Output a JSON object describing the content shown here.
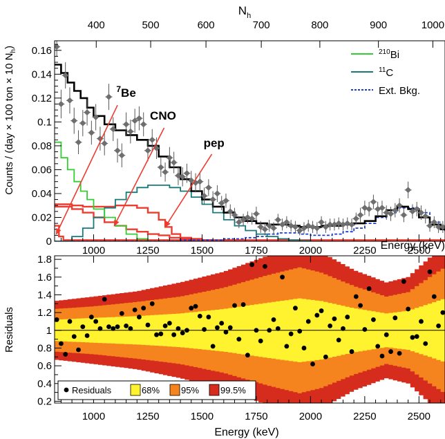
{
  "chart_data": [
    {
      "type": "line",
      "panel": "spectrum",
      "xlabel": "Energy (keV)",
      "ylabel": "Counts / (day × 100 ton × 10 N",
      "ylabel_sub": "h",
      "ylabel_close": ")",
      "top_axis_label": "N",
      "top_axis_label_sub": "h",
      "xlim": [
        820,
        2620
      ],
      "ylim": [
        0,
        0.168
      ],
      "x_ticks": [
        1000,
        1250,
        1500,
        1750,
        2000,
        2250,
        2500
      ],
      "x_tick_labels": [
        "1000",
        "1250",
        "1500",
        "1750",
        "2000",
        "2250",
        "2500"
      ],
      "y_ticks": [
        0,
        0.02,
        0.04,
        0.06,
        0.08,
        0.1,
        0.12,
        0.14,
        0.16
      ],
      "y_tick_labels": [
        "0",
        "0.02",
        "0.04",
        "0.06",
        "0.08",
        "0.1",
        "0.12",
        "0.14",
        "0.16"
      ],
      "top_ticks_energy": [
        1012,
        1263,
        1518,
        1773,
        2043,
        2313,
        2564
      ],
      "top_tick_labels": [
        "400",
        "500",
        "600",
        "700",
        "800",
        "900",
        "1000"
      ],
      "legend": {
        "placement": "top-right",
        "entries": [
          {
            "sup": "210",
            "label": "Bi",
            "color": "#33cc33",
            "style": "solid"
          },
          {
            "sup": "11",
            "label": "C",
            "color": "#177a7a",
            "style": "solid"
          },
          {
            "sup": "",
            "label": "Ext. Bkg.",
            "color": "#1a3ccc",
            "style": "dotted"
          }
        ]
      },
      "annotations": [
        {
          "sup": "7",
          "label": "Be",
          "color": "#ee3b30",
          "text_at": [
            1150,
            0.121
          ],
          "arrow_from": [
            1110,
            0.114
          ],
          "arrow_to": [
            828,
            0.006
          ]
        },
        {
          "sup": "",
          "label": "CNO",
          "color": "#ee3b30",
          "text_at": [
            1320,
            0.102
          ],
          "arrow_from": [
            1325,
            0.095
          ],
          "arrow_to": [
            1095,
            0.013
          ]
        },
        {
          "sup": "",
          "label": "pep",
          "color": "#ee3b30",
          "text_at": [
            1555,
            0.079
          ],
          "arrow_from": [
            1545,
            0.073
          ],
          "arrow_to": [
            1330,
            0.012
          ]
        }
      ],
      "series": [
        {
          "name": "Total fit",
          "color": "#000000",
          "x": [
            820,
            850,
            880,
            910,
            940,
            970,
            1000,
            1050,
            1100,
            1150,
            1200,
            1250,
            1300,
            1350,
            1400,
            1450,
            1500,
            1550,
            1600,
            1650,
            1700,
            1750,
            1800,
            1850,
            1900,
            1950,
            2000,
            2050,
            2100,
            2150,
            2200,
            2250,
            2300,
            2350,
            2400,
            2450,
            2500,
            2550,
            2600,
            2620
          ],
          "y": [
            0.148,
            0.141,
            0.133,
            0.126,
            0.12,
            0.112,
            0.105,
            0.098,
            0.093,
            0.089,
            0.085,
            0.08,
            0.071,
            0.062,
            0.052,
            0.042,
            0.035,
            0.029,
            0.024,
            0.02,
            0.017,
            0.015,
            0.014,
            0.014,
            0.013,
            0.012,
            0.012,
            0.013,
            0.013,
            0.014,
            0.015,
            0.017,
            0.021,
            0.026,
            0.029,
            0.027,
            0.02,
            0.014,
            0.01,
            0.009
          ]
        },
        {
          "name": "210Bi",
          "color": "#33cc33",
          "x": [
            820,
            850,
            880,
            910,
            940,
            970,
            1000,
            1050,
            1100,
            1150,
            1200,
            1250
          ],
          "y": [
            0.083,
            0.07,
            0.06,
            0.05,
            0.042,
            0.035,
            0.027,
            0.02,
            0.013,
            0.006,
            0.002,
            0.0
          ]
        },
        {
          "name": "11C",
          "color": "#177a7a",
          "x": [
            820,
            900,
            950,
            1000,
            1050,
            1100,
            1150,
            1200,
            1250,
            1300,
            1350,
            1400,
            1450,
            1500,
            1550,
            1600,
            1650,
            1700,
            1750,
            1800,
            1850,
            1900,
            1950,
            2000
          ],
          "y": [
            0.0,
            0.004,
            0.011,
            0.02,
            0.028,
            0.035,
            0.041,
            0.045,
            0.047,
            0.047,
            0.045,
            0.042,
            0.037,
            0.031,
            0.024,
            0.018,
            0.013,
            0.009,
            0.006,
            0.004,
            0.002,
            0.001,
            0.0005,
            0.0
          ]
        },
        {
          "name": "Ext. Bkg.",
          "color": "#1a3ccc",
          "dashed": true,
          "x": [
            820,
            1000,
            1200,
            1400,
            1500,
            1600,
            1700,
            1750,
            1800,
            1850,
            1900,
            1950,
            2000,
            2050,
            2100,
            2150,
            2200,
            2250,
            2300,
            2350,
            2400,
            2450,
            2500,
            2550,
            2600,
            2620
          ],
          "y": [
            0.0,
            0.0,
            0.0,
            0.001,
            0.001,
            0.002,
            0.003,
            0.004,
            0.006,
            0.007,
            0.007,
            0.006,
            0.005,
            0.005,
            0.006,
            0.008,
            0.011,
            0.015,
            0.02,
            0.024,
            0.028,
            0.028,
            0.024,
            0.016,
            0.01,
            0.008
          ]
        },
        {
          "name": "7Be",
          "color": "#ee3b30",
          "x": [
            820,
            840,
            860,
            2620
          ],
          "y": [
            0.013,
            0.004,
            0.001,
            0.001
          ]
        },
        {
          "name": "CNO",
          "color": "#ee3b30",
          "x": [
            820,
            900,
            950,
            1000,
            1050,
            1100,
            1150,
            1200,
            1250,
            1300,
            1350,
            1400,
            1450,
            1500,
            1550,
            1600,
            1650,
            1700
          ],
          "y": [
            0.029,
            0.027,
            0.024,
            0.02,
            0.016,
            0.013,
            0.01,
            0.008,
            0.006,
            0.005,
            0.003,
            0.002,
            0.001,
            0.0008,
            0.0005,
            0.0003,
            0.0002,
            0.0
          ]
        },
        {
          "name": "pep",
          "color": "#ee3b30",
          "x": [
            820,
            850,
            900,
            950,
            1000,
            1050,
            1100,
            1150,
            1200,
            1250,
            1300,
            1330,
            1360,
            1400,
            1450,
            1500,
            1550
          ],
          "y": [
            0.031,
            0.031,
            0.03,
            0.029,
            0.029,
            0.029,
            0.03,
            0.03,
            0.028,
            0.024,
            0.018,
            0.012,
            0.006,
            0.003,
            0.002,
            0.001,
            0.0
          ]
        }
      ],
      "data_points": {
        "x": [
          830,
          850,
          870,
          890,
          910,
          930,
          950,
          970,
          990,
          1010,
          1030,
          1050,
          1070,
          1090,
          1110,
          1130,
          1150,
          1170,
          1190,
          1210,
          1230,
          1250,
          1270,
          1290,
          1310,
          1330,
          1350,
          1370,
          1390,
          1410,
          1430,
          1450,
          1470,
          1490,
          1510,
          1530,
          1550,
          1570,
          1590,
          1610,
          1630,
          1650,
          1670,
          1690,
          1710,
          1730,
          1750,
          1770,
          1790,
          1810,
          1830,
          1850,
          1870,
          1890,
          1910,
          1930,
          1950,
          1970,
          1990,
          2010,
          2030,
          2050,
          2070,
          2090,
          2110,
          2130,
          2150,
          2170,
          2190,
          2210,
          2230,
          2250,
          2270,
          2290,
          2310,
          2330,
          2350,
          2370,
          2390,
          2410,
          2430,
          2450,
          2470,
          2490,
          2510,
          2530,
          2550,
          2570,
          2590,
          2610
        ],
        "y": [
          0.163,
          0.115,
          0.139,
          0.118,
          0.101,
          0.083,
          0.099,
          0.108,
          0.091,
          0.104,
          0.086,
          0.082,
          0.121,
          0.094,
          0.076,
          0.072,
          0.098,
          0.092,
          0.101,
          0.103,
          0.098,
          0.076,
          0.085,
          0.078,
          0.062,
          0.058,
          0.07,
          0.066,
          0.055,
          0.054,
          0.057,
          0.051,
          0.049,
          0.05,
          0.038,
          0.045,
          0.035,
          0.04,
          0.032,
          0.034,
          0.025,
          0.022,
          0.016,
          0.018,
          0.02,
          0.019,
          0.023,
          0.012,
          0.01,
          0.013,
          0.011,
          0.018,
          0.014,
          0.016,
          0.013,
          0.012,
          0.009,
          0.011,
          0.013,
          0.012,
          0.011,
          0.016,
          0.012,
          0.014,
          0.014,
          0.015,
          0.014,
          0.015,
          0.014,
          0.019,
          0.022,
          0.028,
          0.027,
          0.033,
          0.027,
          0.028,
          0.024,
          0.023,
          0.026,
          0.03,
          0.022,
          0.043,
          0.025,
          0.027,
          0.024,
          0.021,
          0.013,
          0.016,
          0.012,
          0.012
        ],
        "err": [
          0.008,
          0.012,
          0.011,
          0.011,
          0.011,
          0.01,
          0.011,
          0.011,
          0.01,
          0.011,
          0.01,
          0.01,
          0.011,
          0.01,
          0.01,
          0.01,
          0.01,
          0.01,
          0.01,
          0.01,
          0.01,
          0.009,
          0.009,
          0.009,
          0.008,
          0.008,
          0.009,
          0.009,
          0.008,
          0.008,
          0.008,
          0.008,
          0.008,
          0.008,
          0.007,
          0.007,
          0.007,
          0.007,
          0.006,
          0.006,
          0.006,
          0.006,
          0.005,
          0.005,
          0.005,
          0.005,
          0.006,
          0.005,
          0.005,
          0.005,
          0.005,
          0.005,
          0.005,
          0.005,
          0.005,
          0.005,
          0.004,
          0.005,
          0.005,
          0.005,
          0.005,
          0.005,
          0.005,
          0.005,
          0.005,
          0.005,
          0.005,
          0.005,
          0.005,
          0.005,
          0.006,
          0.006,
          0.006,
          0.006,
          0.006,
          0.006,
          0.006,
          0.006,
          0.006,
          0.006,
          0.006,
          0.007,
          0.006,
          0.006,
          0.006,
          0.006,
          0.005,
          0.005,
          0.005,
          0.005
        ]
      }
    },
    {
      "type": "scatter",
      "panel": "residuals",
      "xlabel": "Energy (keV)",
      "ylabel": "Residuals",
      "xlim": [
        820,
        2620
      ],
      "ylim": [
        0.18,
        1.84
      ],
      "x_ticks": [
        1000,
        1250,
        1500,
        1750,
        2000,
        2250,
        2500
      ],
      "x_tick_labels": [
        "1000",
        "1250",
        "1500",
        "1750",
        "2000",
        "2250",
        "2500"
      ],
      "y_ticks": [
        0.2,
        0.4,
        0.6,
        0.8,
        1,
        1.2,
        1.4,
        1.6,
        1.8
      ],
      "y_tick_labels": [
        "0.2",
        "0.4",
        "0.6",
        "0.8",
        "1",
        "1.2",
        "1.4",
        "1.6",
        "1.8"
      ],
      "reference_line": 1,
      "bands": [
        {
          "label": "99.5%",
          "color": "#d62c1e",
          "x": [
            820,
            1000,
            1200,
            1400,
            1600,
            1800,
            1950,
            2050,
            2200,
            2350,
            2450,
            2550,
            2620
          ],
          "half_width": [
            0.33,
            0.38,
            0.44,
            0.54,
            0.66,
            0.84,
            0.95,
            0.88,
            0.68,
            0.54,
            0.6,
            0.82,
            0.95
          ]
        },
        {
          "label": "95%",
          "color": "#f5841f",
          "x": [
            820,
            1000,
            1200,
            1400,
            1600,
            1800,
            1950,
            2050,
            2200,
            2350,
            2450,
            2550,
            2620
          ],
          "half_width": [
            0.24,
            0.27,
            0.32,
            0.38,
            0.48,
            0.62,
            0.71,
            0.65,
            0.5,
            0.38,
            0.43,
            0.6,
            0.71
          ]
        },
        {
          "label": "68%",
          "color": "#fff22e",
          "x": [
            820,
            1000,
            1200,
            1400,
            1600,
            1800,
            1950,
            2050,
            2200,
            2350,
            2450,
            2550,
            2620
          ],
          "half_width": [
            0.12,
            0.14,
            0.16,
            0.19,
            0.24,
            0.31,
            0.36,
            0.33,
            0.25,
            0.19,
            0.22,
            0.3,
            0.36
          ]
        }
      ],
      "points": {
        "x": [
          830,
          850,
          870,
          890,
          910,
          930,
          950,
          970,
          990,
          1010,
          1030,
          1050,
          1070,
          1090,
          1110,
          1130,
          1150,
          1170,
          1190,
          1210,
          1230,
          1250,
          1270,
          1290,
          1310,
          1330,
          1350,
          1370,
          1390,
          1410,
          1430,
          1450,
          1470,
          1490,
          1510,
          1530,
          1550,
          1570,
          1590,
          1610,
          1630,
          1650,
          1670,
          1690,
          1710,
          1730,
          1750,
          1770,
          1790,
          1810,
          1830,
          1850,
          1870,
          1890,
          1910,
          1930,
          1950,
          1970,
          1990,
          2010,
          2030,
          2050,
          2070,
          2090,
          2110,
          2130,
          2150,
          2170,
          2190,
          2210,
          2230,
          2250,
          2270,
          2290,
          2310,
          2330,
          2350,
          2370,
          2390,
          2410,
          2430,
          2450,
          2470,
          2490,
          2510,
          2530,
          2550,
          2570,
          2590,
          2610
        ],
        "y": [
          1.12,
          0.85,
          0.73,
          1.1,
          0.93,
          0.78,
          1.04,
          0.94,
          1.15,
          1.1,
          1.02,
          1.35,
          1.04,
          1.02,
          1.04,
          1.19,
          1.05,
          1.02,
          1.23,
          1.15,
          1.25,
          1.06,
          1.3,
          0.95,
          0.96,
          1.05,
          1.08,
          0.95,
          1.02,
          0.97,
          1.0,
          1.25,
          1.27,
          1.16,
          1.01,
          1.15,
          0.82,
          1.03,
          1.08,
          0.98,
          1.03,
          1.28,
          0.9,
          1.29,
          0.72,
          1.74,
          1.0,
          0.88,
          1.72,
          1.0,
          1.12,
          1.02,
          1.6,
          0.82,
          0.96,
          1.25,
          0.99,
          0.8,
          1.1,
          0.62,
          1.17,
          1.22,
          0.7,
          1.05,
          1.13,
          0.89,
          1.02,
          1.15,
          0.76,
          1.38,
          1.28,
          1.01,
          1.47,
          1.12,
          0.82,
          0.71,
          0.95,
          0.76,
          1.14,
          0.74,
          1.55,
          1.24,
          0.92,
          0.93,
          1.1,
          0.85,
          1.66,
          1.38,
          1.05,
          1.2
        ]
      },
      "legend": {
        "placement": "bottom-left",
        "entries": [
          {
            "label": "Residuals",
            "kind": "marker"
          },
          {
            "label": "68%",
            "color": "#fff22e"
          },
          {
            "label": "95%",
            "color": "#f5841f"
          },
          {
            "label": "99.5%",
            "color": "#d62c1e"
          }
        ]
      }
    }
  ]
}
